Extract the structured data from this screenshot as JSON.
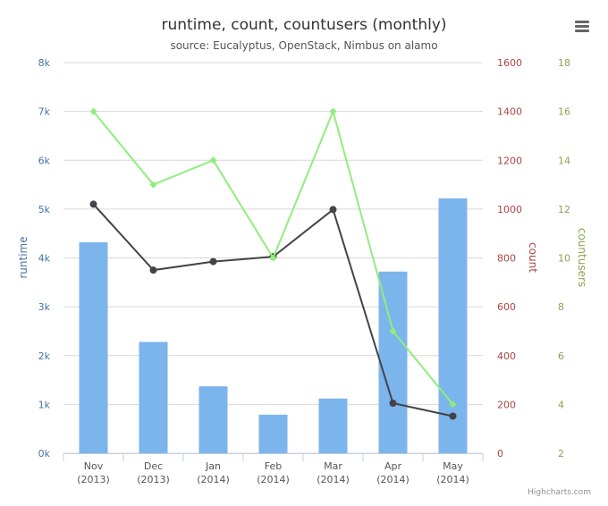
{
  "chart_data": {
    "type": "bar+line",
    "title": "runtime, count, countusers (monthly)",
    "subtitle": "source: Eucalyptus, OpenStack, Nimbus on alamo",
    "categories": [
      {
        "month": "Nov",
        "year": "(2013)"
      },
      {
        "month": "Dec",
        "year": "(2013)"
      },
      {
        "month": "Jan",
        "year": "(2014)"
      },
      {
        "month": "Feb",
        "year": "(2014)"
      },
      {
        "month": "Mar",
        "year": "(2014)"
      },
      {
        "month": "Apr",
        "year": "(2014)"
      },
      {
        "month": "May",
        "year": "(2014)"
      }
    ],
    "axes": {
      "runtime": {
        "label": "runtime",
        "min": 0,
        "max": 8000,
        "ticks": [
          "0k",
          "1k",
          "2k",
          "3k",
          "4k",
          "5k",
          "6k",
          "7k",
          "8k"
        ],
        "color": "#4572A7"
      },
      "count": {
        "label": "count",
        "min": 0,
        "max": 1600,
        "ticks": [
          "0",
          "200",
          "400",
          "600",
          "800",
          "1000",
          "1200",
          "1400",
          "1600"
        ],
        "color": "#AA4643"
      },
      "countusers": {
        "label": "countusers",
        "min": 2,
        "max": 18,
        "ticks": [
          "2",
          "4",
          "6",
          "8",
          "10",
          "12",
          "14",
          "16",
          "18"
        ],
        "color": "#89A54E"
      }
    },
    "series": [
      {
        "key": "runtime",
        "type": "bar",
        "axis": "runtime",
        "color": "#7cb5ec",
        "values": [
          4320,
          2280,
          1370,
          790,
          1120,
          3720,
          5220
        ]
      },
      {
        "key": "count",
        "type": "line",
        "axis": "count",
        "color": "#434348",
        "values": [
          1020,
          750,
          785,
          805,
          998,
          205,
          152
        ]
      },
      {
        "key": "countusers",
        "type": "line",
        "axis": "countusers",
        "color": "#90ed7d",
        "values": [
          16,
          13,
          14,
          10,
          16,
          7,
          4
        ]
      }
    ],
    "grid": true,
    "credit": "Highcharts.com",
    "menu_icon": "hamburger-menu-icon"
  }
}
